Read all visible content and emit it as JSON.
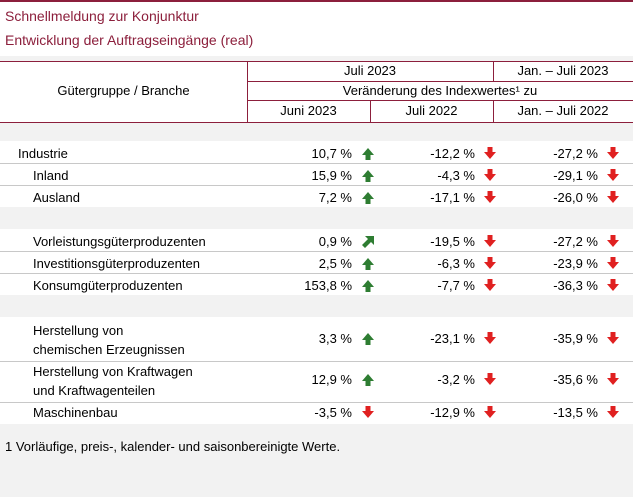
{
  "title": {
    "line1": "Schnellmeldung zur Konjunktur",
    "line2": "Entwicklung der Auftragseingänge (real)"
  },
  "header": {
    "col_group": "Gütergruppe / Branche",
    "period_main": "Juli 2023",
    "period_ytd": "Jan. – Juli 2023",
    "change_label": "Veränderung des Indexwertes¹ zu",
    "col_prev_month": "Juni 2023",
    "col_prev_year": "Juli 2022",
    "col_ytd_prev": "Jan. – Juli 2022"
  },
  "rows": [
    {
      "label": "Industrie",
      "v1": "10,7 %",
      "a1": "up",
      "v2": "-12,2 %",
      "a2": "down",
      "v3": "-27,2 %",
      "a3": "down"
    },
    {
      "label": "Inland",
      "v1": "15,9 %",
      "a1": "up",
      "v2": "-4,3 %",
      "a2": "down",
      "v3": "-29,1 %",
      "a3": "down"
    },
    {
      "label": "Ausland",
      "v1": "7,2 %",
      "a1": "up",
      "v2": "-17,1 %",
      "a2": "down",
      "v3": "-26,0 %",
      "a3": "down"
    },
    {
      "label": "Vorleistungsgüterproduzenten",
      "v1": "0,9 %",
      "a1": "up-right",
      "v2": "-19,5 %",
      "a2": "down",
      "v3": "-27,2 %",
      "a3": "down"
    },
    {
      "label": "Investitionsgüterproduzenten",
      "v1": "2,5 %",
      "a1": "up",
      "v2": "-6,3 %",
      "a2": "down",
      "v3": "-23,9 %",
      "a3": "down"
    },
    {
      "label": "Konsumgüterproduzenten",
      "v1": "153,8 %",
      "a1": "up",
      "v2": "-7,7 %",
      "a2": "down",
      "v3": "-36,3 %",
      "a3": "down"
    },
    {
      "label_l1": "Herstellung von",
      "label_l2": "chemischen Erzeugnissen",
      "v1": "3,3 %",
      "a1": "up",
      "v2": "-23,1 %",
      "a2": "down",
      "v3": "-35,9 %",
      "a3": "down"
    },
    {
      "label_l1": "Herstellung von Kraftwagen",
      "label_l2": "und Kraftwagenteilen",
      "v1": "12,9 %",
      "a1": "up",
      "v2": "-3,2 %",
      "a2": "down",
      "v3": "-35,6 %",
      "a3": "down"
    },
    {
      "label": "Maschinenbau",
      "v1": "-3,5 %",
      "a1": "down",
      "v2": "-12,9 %",
      "a2": "down",
      "v3": "-13,5 %",
      "a3": "down"
    }
  ],
  "footnote": "1 Vorläufige, preis-, kalender- und saisonbereinigte Werte.",
  "colors": {
    "accent": "#8c1f3c",
    "arrow_up": "#2e7d32",
    "arrow_down": "#e02020",
    "band": "#f2f2f2"
  }
}
